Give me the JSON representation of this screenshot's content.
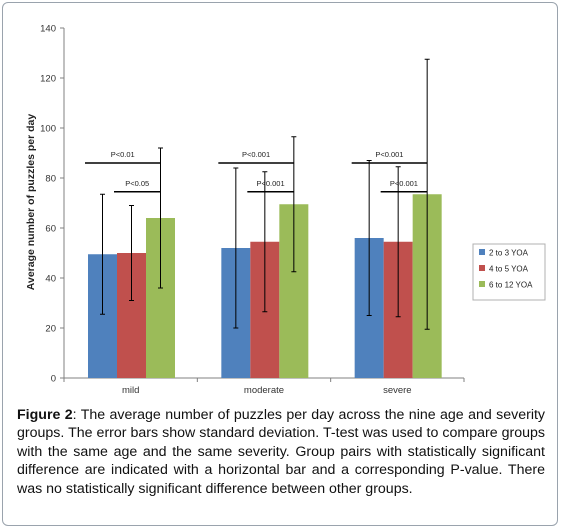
{
  "chart_data": {
    "type": "bar",
    "categories": [
      "mild",
      "moderate",
      "severe"
    ],
    "series": [
      {
        "name": "2 to 3 YOA",
        "values": [
          49.5,
          52,
          56
        ],
        "errors": [
          24,
          32,
          31
        ],
        "color": "#4f81bd"
      },
      {
        "name": "4 to 5 YOA",
        "values": [
          50,
          54.5,
          54.5
        ],
        "errors": [
          19,
          28,
          30
        ],
        "color": "#c0504d"
      },
      {
        "name": "6 to 12 YOA",
        "values": [
          64,
          69.5,
          73.5
        ],
        "errors": [
          28,
          27,
          54
        ],
        "color": "#9bbb59"
      }
    ],
    "ylabel": "Average number of puzzles per day",
    "ylim": [
      0,
      140
    ],
    "yticks": [
      0,
      20,
      40,
      60,
      80,
      100,
      120,
      140
    ],
    "grid": false,
    "legend_position": "right",
    "significance": [
      {
        "category": "mild",
        "from_series": 0,
        "to_series": 2,
        "label": "P<0.01",
        "level": 86
      },
      {
        "category": "mild",
        "from_series": 1,
        "to_series": 2,
        "label": "P<0.05",
        "level": 74.5
      },
      {
        "category": "moderate",
        "from_series": 0,
        "to_series": 2,
        "label": "P<0.001",
        "level": 86
      },
      {
        "category": "moderate",
        "from_series": 1,
        "to_series": 2,
        "label": "P<0.001",
        "level": 74.5
      },
      {
        "category": "severe",
        "from_series": 0,
        "to_series": 2,
        "label": "P<0.001",
        "level": 86
      },
      {
        "category": "severe",
        "from_series": 1,
        "to_series": 2,
        "label": "P<0.001",
        "level": 74.5
      }
    ]
  },
  "caption": {
    "label": "Figure 2",
    "text": ": The average number of puzzles per day across the nine age and severity groups. The error bars show standard deviation. T-test was used to compare groups with the same age and the same severity. Group pairs with statistically significant difference are indicated with a horizontal bar and a corresponding P-value. There was no statistically significant difference between other groups."
  }
}
